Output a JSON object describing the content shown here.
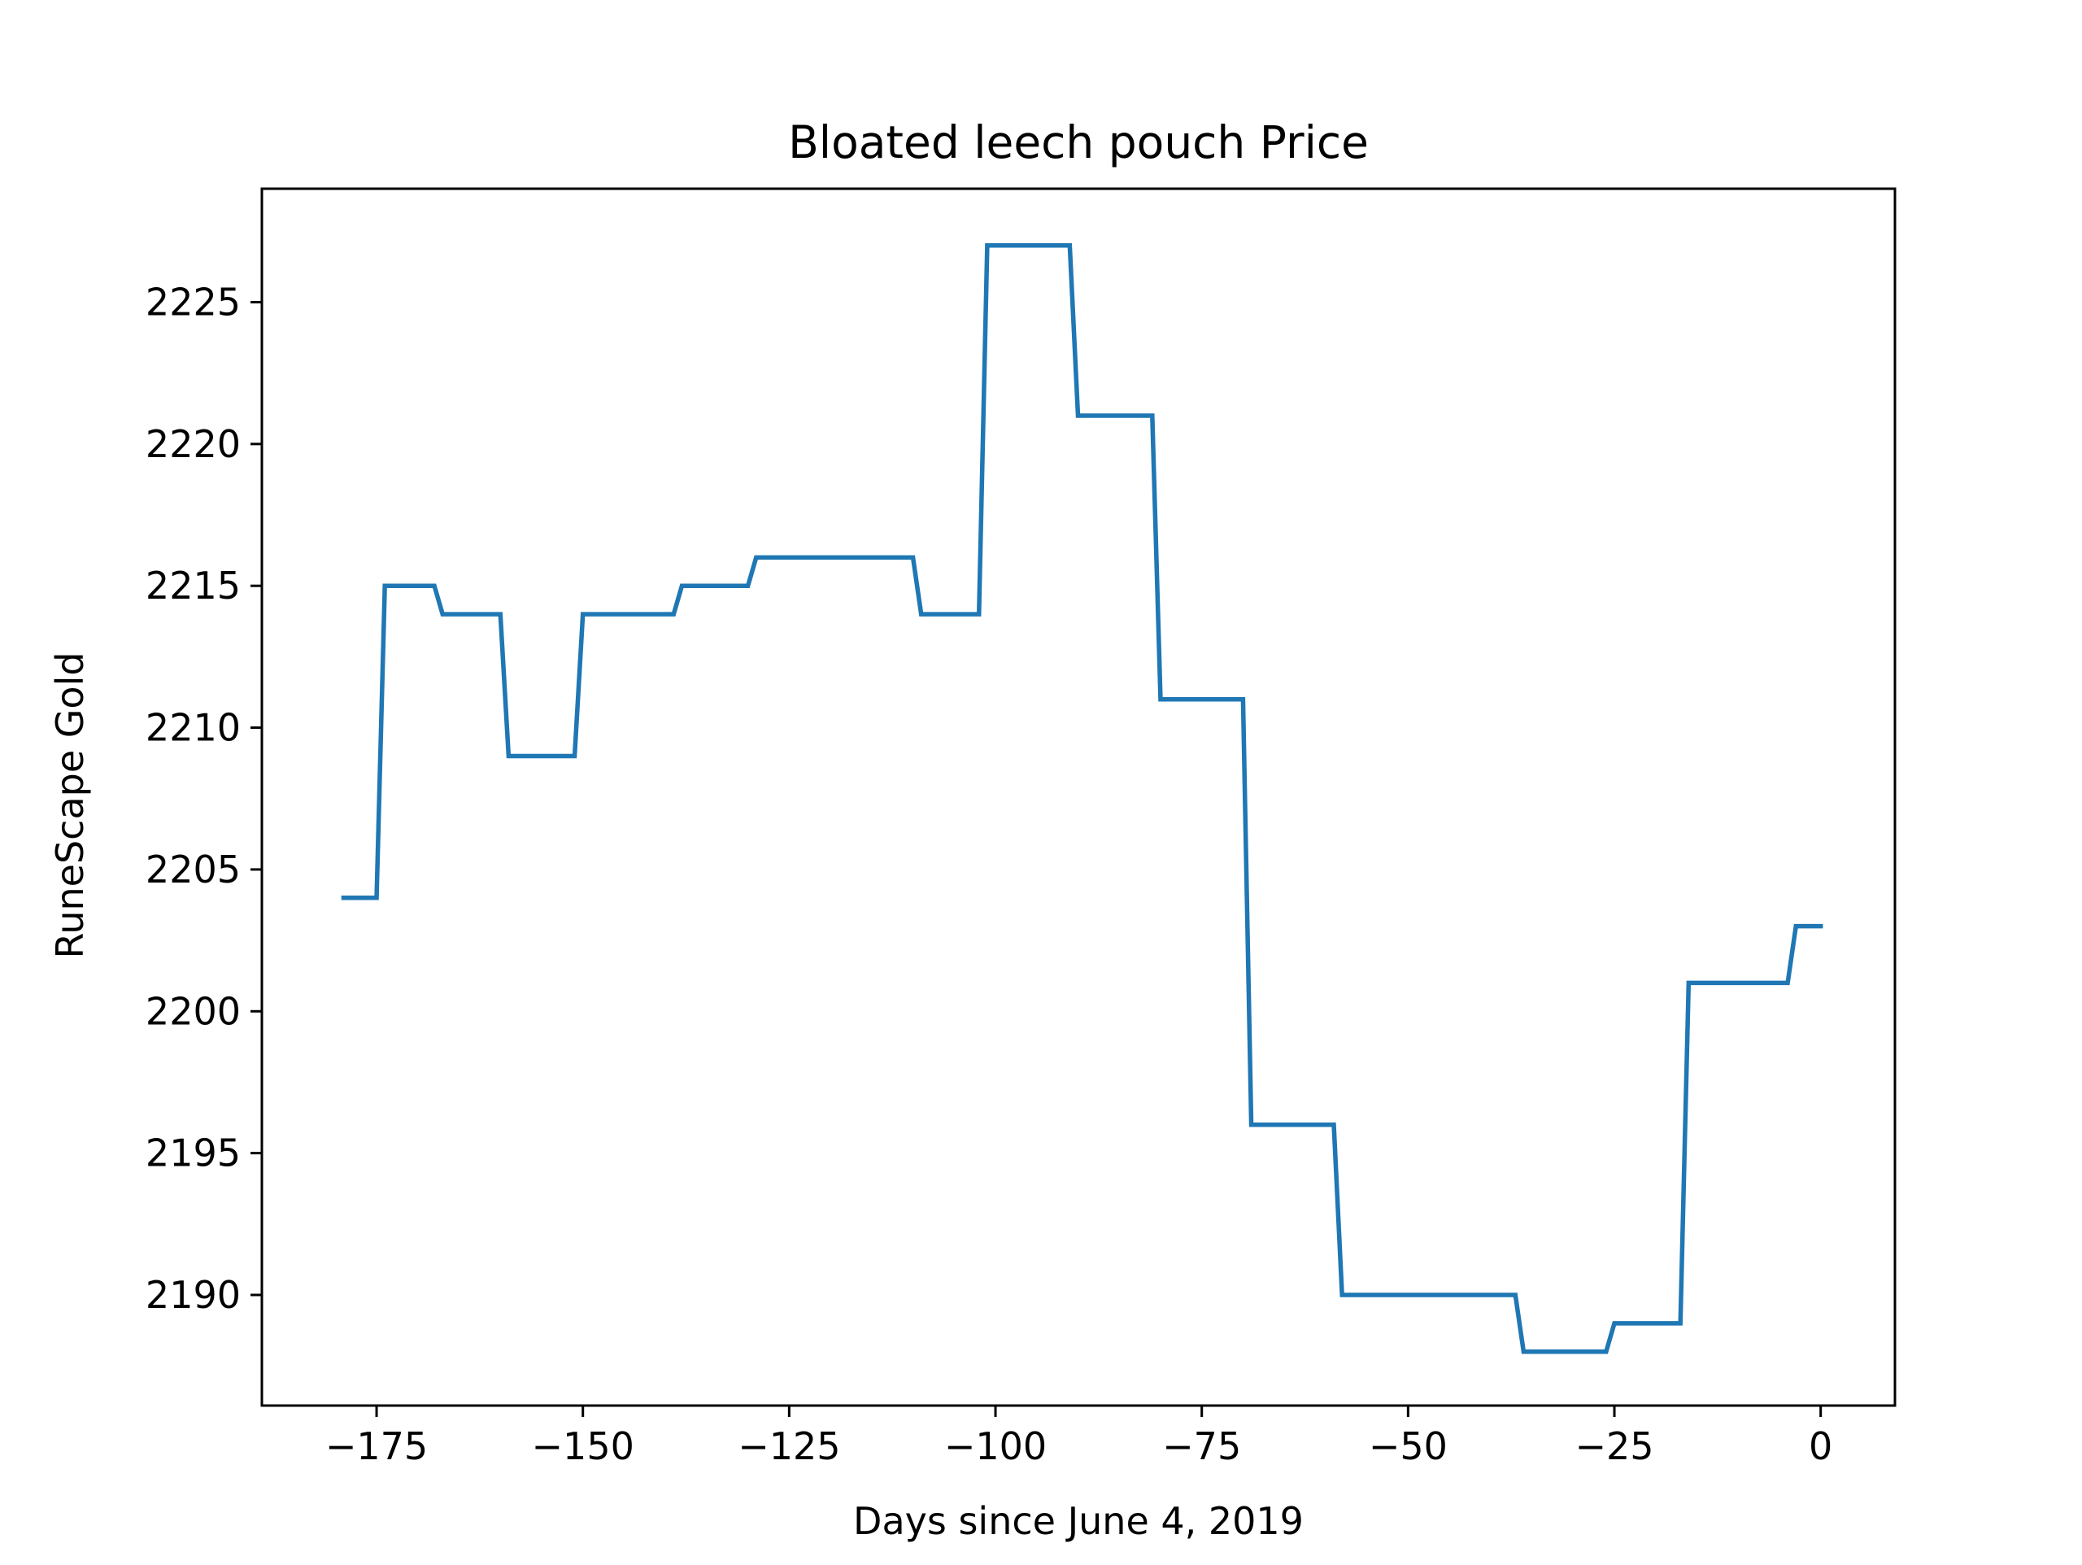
{
  "chart_data": {
    "type": "line",
    "title": "Bloated leech pouch Price",
    "xlabel": "Days since June 4, 2019",
    "ylabel": "RuneScape Gold",
    "xlim": [
      -188.9,
      9
    ],
    "ylim": [
      2186.1,
      2229
    ],
    "grid": false,
    "legend": "none",
    "x_ticks": [
      -175,
      -150,
      -125,
      -100,
      -75,
      -50,
      -25,
      0
    ],
    "x_tick_labels": [
      "−175",
      "−150",
      "−125",
      "−100",
      "−75",
      "−50",
      "−25",
      "0"
    ],
    "y_ticks": [
      2190,
      2195,
      2200,
      2205,
      2210,
      2215,
      2220,
      2225
    ],
    "y_tick_labels": [
      "2190",
      "2195",
      "2200",
      "2205",
      "2210",
      "2215",
      "2220",
      "2225"
    ],
    "series": [
      {
        "color": "#1f77b4",
        "x": [
          -179,
          -175,
          -174,
          -168,
          -167,
          -160,
          -159,
          -151,
          -150,
          -139,
          -138,
          -130,
          -129,
          -110,
          -109,
          -102,
          -101,
          -91,
          -90,
          -81,
          -80,
          -70,
          -69,
          -59,
          -58,
          -37,
          -36,
          -26,
          -25,
          -17,
          -16,
          -4,
          -3,
          0
        ],
        "y": [
          2204,
          2204,
          2215,
          2215,
          2214,
          2214,
          2209,
          2209,
          2214,
          2214,
          2215,
          2215,
          2216,
          2216,
          2214,
          2214,
          2227,
          2227,
          2221,
          2221,
          2211,
          2211,
          2196,
          2196,
          2190,
          2190,
          2188,
          2188,
          2189,
          2189,
          2201,
          2201,
          2203,
          2203
        ]
      }
    ]
  }
}
